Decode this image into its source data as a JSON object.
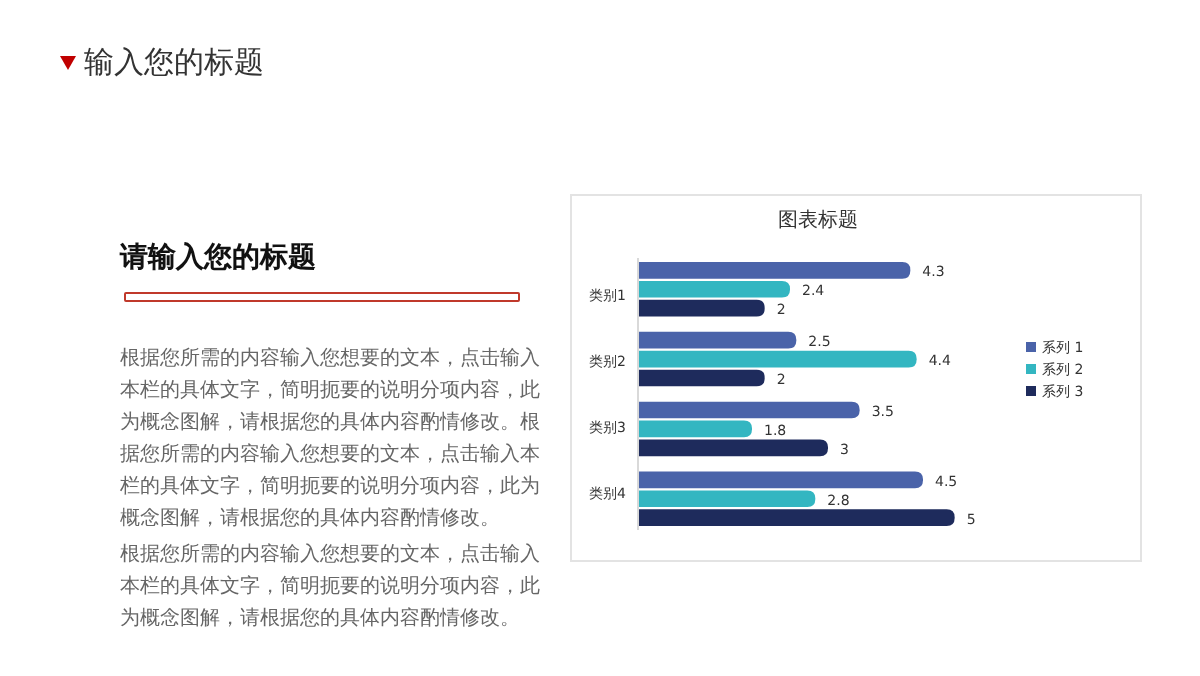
{
  "chart_data": {
    "type": "bar",
    "orientation": "horizontal",
    "title": "图表标题",
    "categories": [
      "类别1",
      "类别2",
      "类别3",
      "类别4"
    ],
    "series": [
      {
        "name": "系列 1",
        "color": "#4a63a9",
        "values": [
          4.3,
          2.5,
          3.5,
          4.5
        ]
      },
      {
        "name": "系列 2",
        "color": "#33b6c1",
        "values": [
          2.4,
          4.4,
          1.8,
          2.8
        ]
      },
      {
        "name": "系列 3",
        "color": "#1e2b5c",
        "values": [
          2,
          2,
          3,
          5
        ]
      }
    ],
    "data_labels": true,
    "legend": "right",
    "annotations": [
      "输入您的标题",
      "请输入您的标题",
      "根据您所需的内容输入您想要的文本，点击输入本栏的具体文字，简明扼要的说明分项内容，此为概念图解，请根据您的具体内容酌情修改。根据您所需的内容输入您想要的文本，点击输入本栏的具体文字，简明扼要的说明分项内容，此为概念图解，请根据您的具体内容酌情修改。",
      "根据您所需的内容输入您想要的文本，点击输入本栏的具体文字，简明扼要的说明分项内容，此为概念图解，请根据您的具体内容酌情修改。"
    ]
  }
}
